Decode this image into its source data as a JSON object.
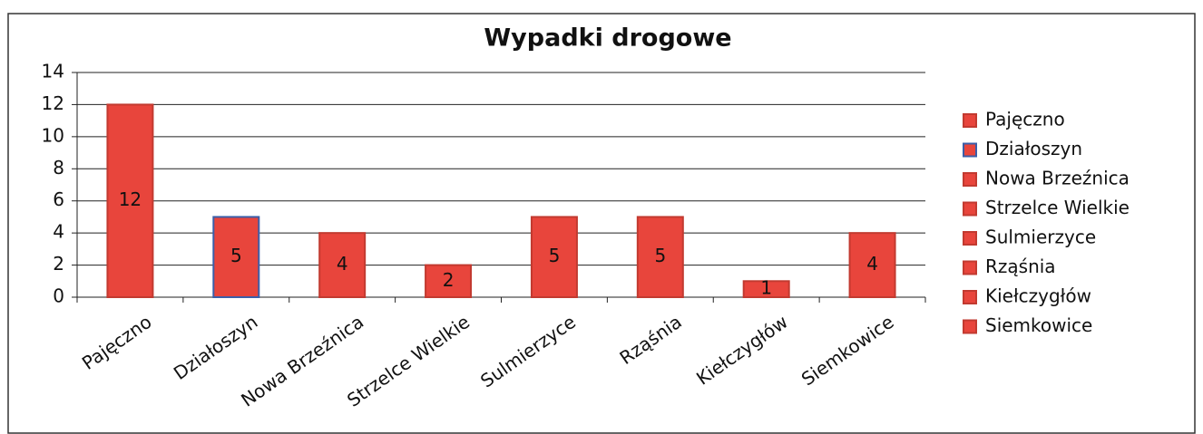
{
  "chart_data": {
    "type": "bar",
    "title": "Wypadki drogowe",
    "categories": [
      "Pajęczno",
      "Działoszyn",
      "Nowa Brzeźnica",
      "Strzelce Wielkie",
      "Sulmierzyce",
      "Rząśnia",
      "Kiełczygłów",
      "Siemkowice"
    ],
    "values": [
      12,
      5,
      4,
      2,
      5,
      5,
      1,
      4
    ],
    "color": "#e8453c",
    "edge_colors": [
      "#c23a30",
      "#3b5ea8",
      "#c23a30",
      "#c23a30",
      "#c23a30",
      "#c23a30",
      "#c23a30",
      "#c23a30"
    ],
    "ylim": [
      0,
      14
    ],
    "yticks": [
      0,
      2,
      4,
      6,
      8,
      10,
      12,
      14
    ],
    "grid": true,
    "legend": "right"
  }
}
